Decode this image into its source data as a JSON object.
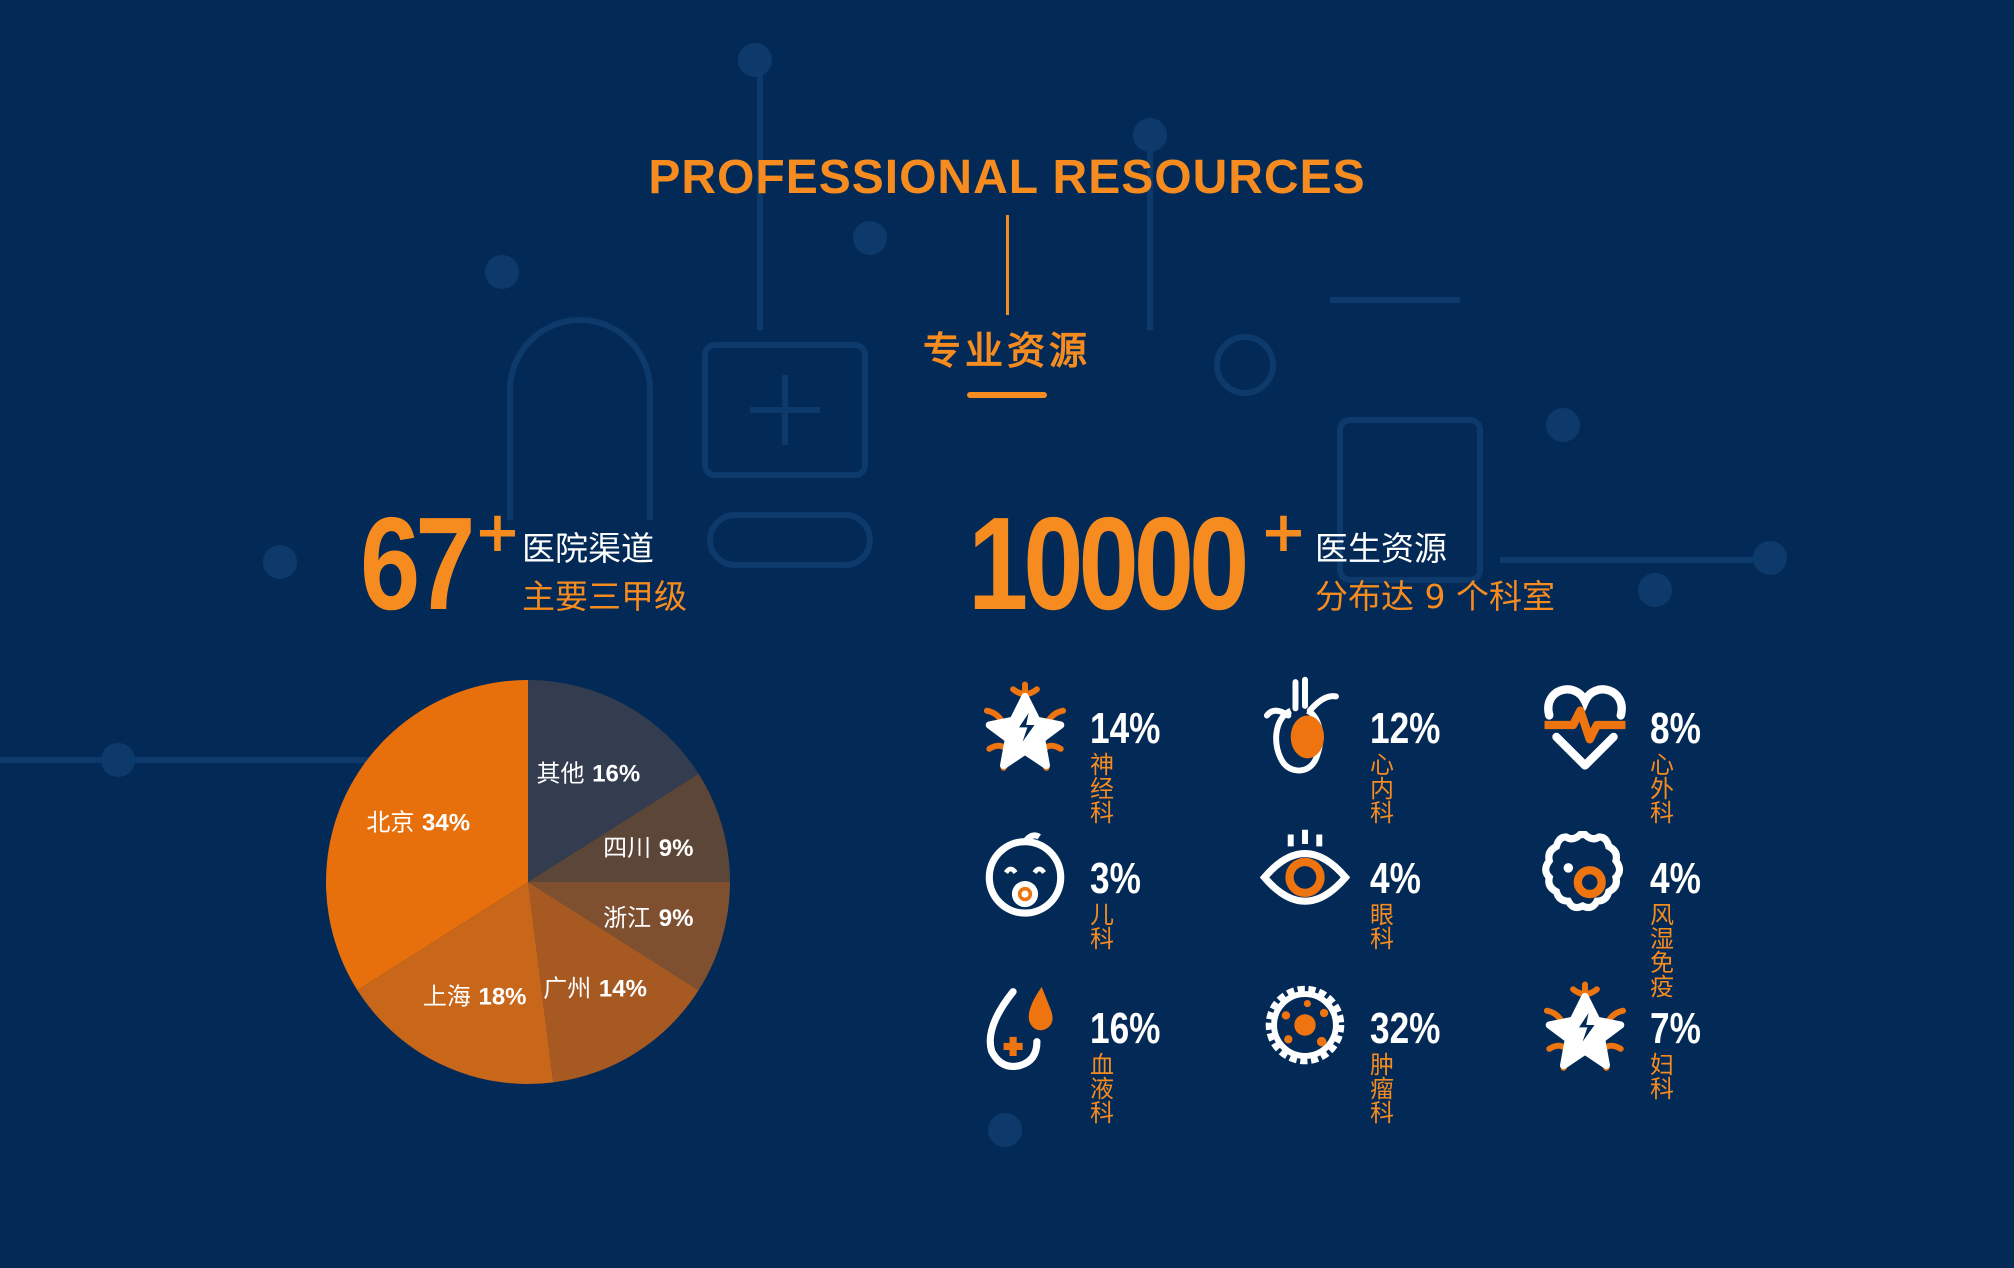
{
  "header": {
    "title": "PROFESSIONAL RESOURCES",
    "subtitle": "专业资源"
  },
  "colors": {
    "background": "#032a56",
    "accent": "#f68b1f",
    "text": "#ffffff"
  },
  "hospitals": {
    "count": "67",
    "plus": "+",
    "label": "医院渠道",
    "sublabel": "主要三甲级"
  },
  "doctors": {
    "count": "10000",
    "plus": "+",
    "label": "医生资源",
    "sublabel": "分布达 9 个科室"
  },
  "chart_data": {
    "type": "pie",
    "start": "top",
    "direction": "clockwise",
    "slices": [
      {
        "label": "其他",
        "value": 16,
        "display": "16%",
        "color": "#333d4f"
      },
      {
        "label": "四川",
        "value": 9,
        "display": "9%",
        "color": "#5b4637"
      },
      {
        "label": "浙江",
        "value": 9,
        "display": "9%",
        "color": "#7f5030"
      },
      {
        "label": "广州",
        "value": 14,
        "display": "14%",
        "color": "#a65a22"
      },
      {
        "label": "上海",
        "value": 18,
        "display": "18%",
        "color": "#c8661a"
      },
      {
        "label": "北京",
        "value": 34,
        "display": "34%",
        "color": "#e8700c"
      }
    ]
  },
  "departments": [
    {
      "pct": "14%",
      "name": "神经科",
      "icon": "neuron-icon"
    },
    {
      "pct": "12%",
      "name": "心内科",
      "icon": "heart-organ-icon"
    },
    {
      "pct": "8%",
      "name": "心外科",
      "icon": "heartbeat-icon"
    },
    {
      "pct": "3%",
      "name": "儿科",
      "icon": "baby-icon"
    },
    {
      "pct": "4%",
      "name": "眼科",
      "icon": "eye-icon"
    },
    {
      "pct": "4%",
      "name": "风湿免疫",
      "icon": "cell-icon"
    },
    {
      "pct": "16%",
      "name": "血液科",
      "icon": "blood-drop-icon"
    },
    {
      "pct": "32%",
      "name": "肿瘤科",
      "icon": "virus-icon"
    },
    {
      "pct": "7%",
      "name": "妇科",
      "icon": "neuron-icon"
    }
  ]
}
